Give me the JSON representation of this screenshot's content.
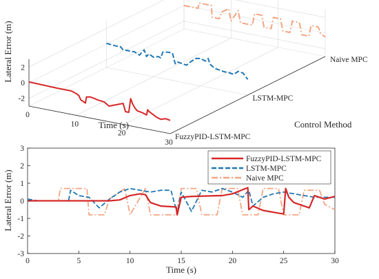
{
  "chart_data": [
    {
      "type": "line",
      "subtype": "3d",
      "zlabel": "Lateral Error (m)",
      "xlabel": "Time (s)",
      "ylabel": "Control Method",
      "xticks": [
        "0",
        "10",
        "20",
        "30"
      ],
      "zticks": [
        "2",
        "0",
        "-2"
      ],
      "categories": [
        "FuzzyPID-LSTM-MPC",
        "LSTM-MPC",
        "Naive MPC"
      ],
      "xlim": [
        0,
        30
      ],
      "zlim": [
        -3,
        3
      ],
      "grid": true,
      "series": [
        {
          "name": "FuzzyPID-LSTM-MPC",
          "color": "#D62728",
          "style": "solid",
          "x": [
            0,
            6,
            9,
            10,
            10.6,
            11,
            12,
            12.2,
            13,
            14,
            14.6,
            15.5,
            16,
            17,
            20,
            20.5,
            21.2,
            21.6,
            22,
            22.5,
            23,
            24,
            25,
            25.2,
            25.5,
            27,
            28,
            29,
            30
          ],
          "y": [
            0.1,
            0,
            0,
            -0.2,
            -0.4,
            -0.9,
            -1.2,
            -0.4,
            -0.3,
            -0.4,
            -0.5,
            -0.55,
            -0.6,
            -1.0,
            -0.3,
            -1.3,
            -1.3,
            0.5,
            -0.1,
            -0.6,
            -0.9,
            -1.0,
            -1.2,
            -0.5,
            -0.7,
            -1.2,
            -1.4,
            -1.2,
            -1.3
          ]
        },
        {
          "name": "LSTM-MPC",
          "color": "#1F77B4",
          "style": "dashed",
          "x": [
            0,
            1,
            2,
            3,
            3.5,
            6,
            7,
            8,
            8.5,
            9,
            10,
            11,
            11.5,
            12,
            13,
            14,
            14.6,
            15,
            17,
            17.5,
            18,
            19,
            20,
            21,
            21.6,
            22,
            23,
            24,
            25,
            26,
            27,
            28,
            29,
            30
          ],
          "y": [
            0.1,
            0.05,
            0,
            0,
            -0.3,
            -0.3,
            -0.6,
            0.2,
            -0.6,
            -0.2,
            -0.5,
            -0.3,
            -0.4,
            0.4,
            0.5,
            0.5,
            -0.8,
            -0.5,
            -0.7,
            -0.4,
            -0.1,
            0.4,
            0.5,
            0.3,
            0.7,
            0.0,
            -0.4,
            -0.5,
            -0.6,
            -0.6,
            -0.7,
            -0.2,
            -0.3,
            -1.0
          ]
        },
        {
          "name": "Naive MPC",
          "color": "#F4A582",
          "style": "dashdot",
          "x": [
            0,
            3,
            3.2,
            5.8,
            6,
            7.5,
            8,
            9.5,
            10,
            11.5,
            12,
            14.5,
            15,
            16.5,
            17,
            18.5,
            19,
            20.5,
            21,
            22.5,
            23,
            24.5,
            25,
            26.5,
            27,
            28.5,
            29,
            30
          ],
          "y": [
            0,
            0,
            0.7,
            0.7,
            -0.8,
            -0.8,
            0.1,
            0.7,
            -0.8,
            0.7,
            -0.8,
            -0.8,
            0.7,
            0.7,
            -0.8,
            -0.8,
            0.7,
            0.7,
            -0.8,
            -0.8,
            0.7,
            0.7,
            -0.8,
            -0.8,
            0.6,
            0.6,
            -0.2,
            -0.5
          ]
        }
      ]
    },
    {
      "type": "line",
      "xlabel": "Time (s)",
      "ylabel": "Lateral Error (m)",
      "xlim": [
        0,
        30
      ],
      "ylim": [
        -3,
        3
      ],
      "xticks": [
        "0",
        "5",
        "10",
        "15",
        "20",
        "25",
        "30"
      ],
      "yticks": [
        "3",
        "2",
        "1",
        "0",
        "-1",
        "-2",
        "-3"
      ],
      "grid": false,
      "legend_position": "top-right",
      "series": [
        {
          "name": "FuzzyPID-LSTM-MPC",
          "color": "#D62728",
          "style": "solid",
          "x": [
            0,
            5,
            8,
            9,
            10,
            11,
            11.5,
            12,
            13,
            14.5,
            14.6,
            15,
            16,
            19,
            20,
            21.5,
            21.6,
            22,
            23,
            24.5,
            25,
            25.2,
            25.5,
            26,
            27.5,
            28,
            29,
            30
          ],
          "y": [
            0,
            0,
            0,
            0.05,
            0.3,
            0.4,
            0.35,
            -0.1,
            -0.3,
            -0.35,
            -0.8,
            0.2,
            0.25,
            0.3,
            0.4,
            0.75,
            -0.5,
            -0.3,
            -0.55,
            -0.7,
            -0.75,
            0.7,
            0.2,
            -0.1,
            -0.4,
            0.3,
            0.1,
            0.25
          ]
        },
        {
          "name": "LSTM-MPC",
          "color": "#1F77B4",
          "style": "dashed",
          "x": [
            0,
            1,
            2,
            3,
            4,
            4.2,
            5,
            6,
            7,
            8,
            9,
            10,
            11,
            12,
            13,
            14,
            14.6,
            15,
            16,
            17,
            18,
            19,
            20,
            21,
            21.6,
            22,
            23,
            24,
            25,
            26,
            27,
            28,
            29,
            30
          ],
          "y": [
            0.1,
            0,
            0,
            0,
            0,
            0.6,
            0.3,
            0.2,
            -0.4,
            0.1,
            0.5,
            0.7,
            0.6,
            0.5,
            0.6,
            0.6,
            -0.7,
            0.5,
            -0.6,
            0.6,
            0.5,
            0.7,
            0.5,
            0.2,
            0.6,
            -0.3,
            0.2,
            0.4,
            0.5,
            0.4,
            0.3,
            0.2,
            0.2,
            0.2
          ]
        },
        {
          "name": "Naive MPC",
          "color": "#F4A582",
          "style": "dashdot",
          "x": [
            0,
            3,
            3.2,
            5.8,
            6,
            7.5,
            8,
            9.5,
            10,
            11.5,
            12,
            14.5,
            15,
            16.5,
            17,
            18.5,
            19,
            20.5,
            21,
            22.5,
            23,
            24.5,
            25,
            26.5,
            27,
            28.5,
            29,
            30
          ],
          "y": [
            0,
            0,
            0.7,
            0.7,
            -0.8,
            -0.8,
            0.1,
            0.7,
            -0.8,
            0.7,
            -0.8,
            -0.8,
            0.7,
            0.7,
            -0.8,
            -0.8,
            0.7,
            0.7,
            -0.8,
            -0.8,
            0.7,
            0.7,
            -0.8,
            -0.8,
            0.6,
            0.6,
            -0.2,
            -0.5
          ]
        }
      ]
    }
  ]
}
